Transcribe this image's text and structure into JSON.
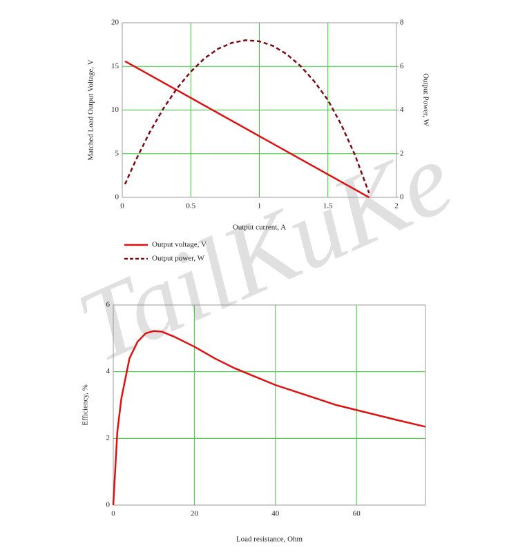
{
  "watermark": "TailKuKe",
  "chart_data": [
    {
      "type": "line",
      "xlabel": "Output current, A",
      "ylabel": "Matched Load Output Voltage, V",
      "y2label": "Output Power, W",
      "xlim": [
        0,
        2
      ],
      "xticks": [
        0,
        0.5,
        1,
        1.5,
        2
      ],
      "ylim": [
        0,
        20
      ],
      "yticks": [
        0,
        5,
        10,
        15,
        20
      ],
      "y2lim": [
        0,
        8
      ],
      "y2ticks": [
        0,
        2,
        4,
        6,
        8
      ],
      "grid": true,
      "legend": "below",
      "series": [
        {
          "name": "Output voltage, V",
          "color": "#dd1111",
          "linestyle": "solid",
          "x": [
            0.02,
            1.8
          ],
          "values": [
            15.6,
            0
          ]
        },
        {
          "name": "Output power, W",
          "color": "#7a0a14",
          "linestyle": "dashed",
          "axis": "y2",
          "x": [
            0.02,
            0.1,
            0.2,
            0.3,
            0.4,
            0.5,
            0.6,
            0.7,
            0.8,
            0.9,
            1.0,
            1.1,
            1.2,
            1.3,
            1.4,
            1.5,
            1.6,
            1.7,
            1.8
          ],
          "values": [
            0.6,
            1.72,
            2.98,
            4.07,
            5.0,
            5.76,
            6.37,
            6.81,
            7.08,
            7.2,
            7.15,
            6.94,
            6.56,
            6.02,
            5.32,
            4.46,
            3.3,
            1.9,
            0.2
          ]
        }
      ]
    },
    {
      "type": "line",
      "xlabel": "Load resistance, Ohm",
      "ylabel": "Efficiency, %",
      "xlim": [
        0,
        77
      ],
      "xticks": [
        0,
        20,
        40,
        60
      ],
      "ylim": [
        0,
        6
      ],
      "yticks": [
        0,
        2,
        4,
        6
      ],
      "grid": true,
      "color": "#dd1111",
      "x": [
        0,
        1,
        2,
        4,
        6,
        8,
        10,
        12,
        15,
        20,
        25,
        30,
        35,
        40,
        45,
        50,
        55,
        60,
        65,
        70,
        77
      ],
      "values": [
        0,
        2.2,
        3.2,
        4.4,
        4.9,
        5.15,
        5.22,
        5.2,
        5.05,
        4.75,
        4.4,
        4.1,
        3.85,
        3.6,
        3.4,
        3.2,
        3.0,
        2.85,
        2.7,
        2.55,
        2.35
      ]
    }
  ]
}
